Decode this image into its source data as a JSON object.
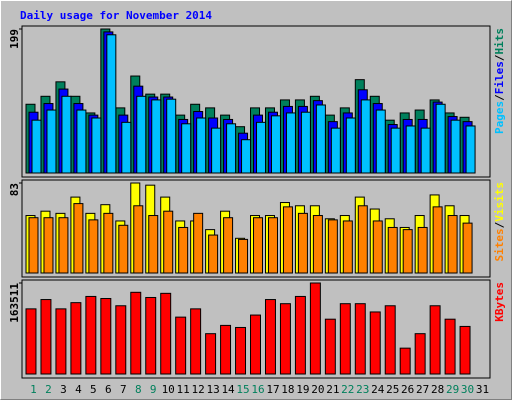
{
  "title": "Daily usage for November 2014",
  "chart_data": [
    {
      "type": "bar",
      "ylim": [
        0,
        199
      ],
      "yticks": [
        199
      ],
      "separator": "/",
      "series": [
        {
          "name": "Pages",
          "color": "#00c0ff",
          "values": [
            73,
            87,
            106,
            87,
            76,
            191,
            70,
            106,
            101,
            102,
            68,
            76,
            62,
            68,
            46,
            70,
            79,
            83,
            84,
            94,
            62,
            76,
            101,
            87,
            62,
            65,
            62,
            95,
            73,
            65,
            null
          ]
        },
        {
          "name": "Files",
          "color": "#0000ff",
          "values": [
            84,
            96,
            116,
            96,
            80,
            195,
            80,
            120,
            105,
            105,
            74,
            85,
            76,
            74,
            55,
            80,
            84,
            92,
            92,
            100,
            71,
            83,
            115,
            96,
            67,
            74,
            74,
            98,
            78,
            71,
            null
          ]
        },
        {
          "name": "Hits",
          "color": "#00805c",
          "values": [
            95,
            106,
            126,
            106,
            83,
            199,
            90,
            134,
            109,
            109,
            80,
            95,
            90,
            80,
            64,
            90,
            90,
            101,
            101,
            106,
            80,
            90,
            129,
            106,
            73,
            83,
            87,
            101,
            83,
            77,
            null
          ]
        }
      ]
    },
    {
      "type": "bar",
      "ylim": [
        0,
        83
      ],
      "yticks": [
        83
      ],
      "separator": "/",
      "series": [
        {
          "name": "Sites",
          "color": "#ff8000",
          "values": [
            51,
            51,
            51,
            64,
            49,
            55,
            44,
            62,
            53,
            57,
            42,
            55,
            35,
            51,
            31,
            51,
            51,
            61,
            55,
            53,
            49,
            48,
            62,
            48,
            42,
            40,
            42,
            61,
            53,
            46,
            null
          ]
        },
        {
          "name": "Visits",
          "color": "#ffff00",
          "values": [
            53,
            57,
            55,
            70,
            55,
            63,
            48,
            83,
            81,
            70,
            48,
            48,
            40,
            57,
            32,
            53,
            53,
            65,
            62,
            62,
            50,
            53,
            70,
            59,
            50,
            42,
            53,
            72,
            62,
            53,
            null
          ]
        }
      ]
    },
    {
      "type": "bar",
      "ylim": [
        0,
        163511
      ],
      "yticks": [
        163511
      ],
      "separator": "/",
      "categories": [
        "1",
        "2",
        "3",
        "4",
        "5",
        "6",
        "7",
        "8",
        "9",
        "10",
        "11",
        "12",
        "13",
        "14",
        "15",
        "16",
        "17",
        "18",
        "19",
        "20",
        "21",
        "22",
        "23",
        "24",
        "25",
        "26",
        "27",
        "28",
        "29",
        "30",
        "31"
      ],
      "category_colors": [
        "#00805c",
        "#00805c",
        "#000000",
        "#000000",
        "#000000",
        "#000000",
        "#000000",
        "#00805c",
        "#00805c",
        "#000000",
        "#000000",
        "#000000",
        "#000000",
        "#000000",
        "#00805c",
        "#00805c",
        "#000000",
        "#000000",
        "#000000",
        "#000000",
        "#000000",
        "#00805c",
        "#00805c",
        "#000000",
        "#000000",
        "#000000",
        "#000000",
        "#000000",
        "#00805c",
        "#00805c",
        "#000000"
      ],
      "series": [
        {
          "name": "KBytes",
          "color": "#ff0000",
          "values": [
            117058,
            133782,
            117058,
            128207,
            139356,
            135640,
            122633,
            146787,
            137498,
            144929,
            102195,
            117058,
            72464,
            87330,
            83613,
            105910,
            133782,
            126349,
            139356,
            163511,
            98478,
            126349,
            126349,
            111484,
            122633,
            46452,
            72464,
            122633,
            98478,
            85472,
            null
          ]
        }
      ]
    }
  ]
}
